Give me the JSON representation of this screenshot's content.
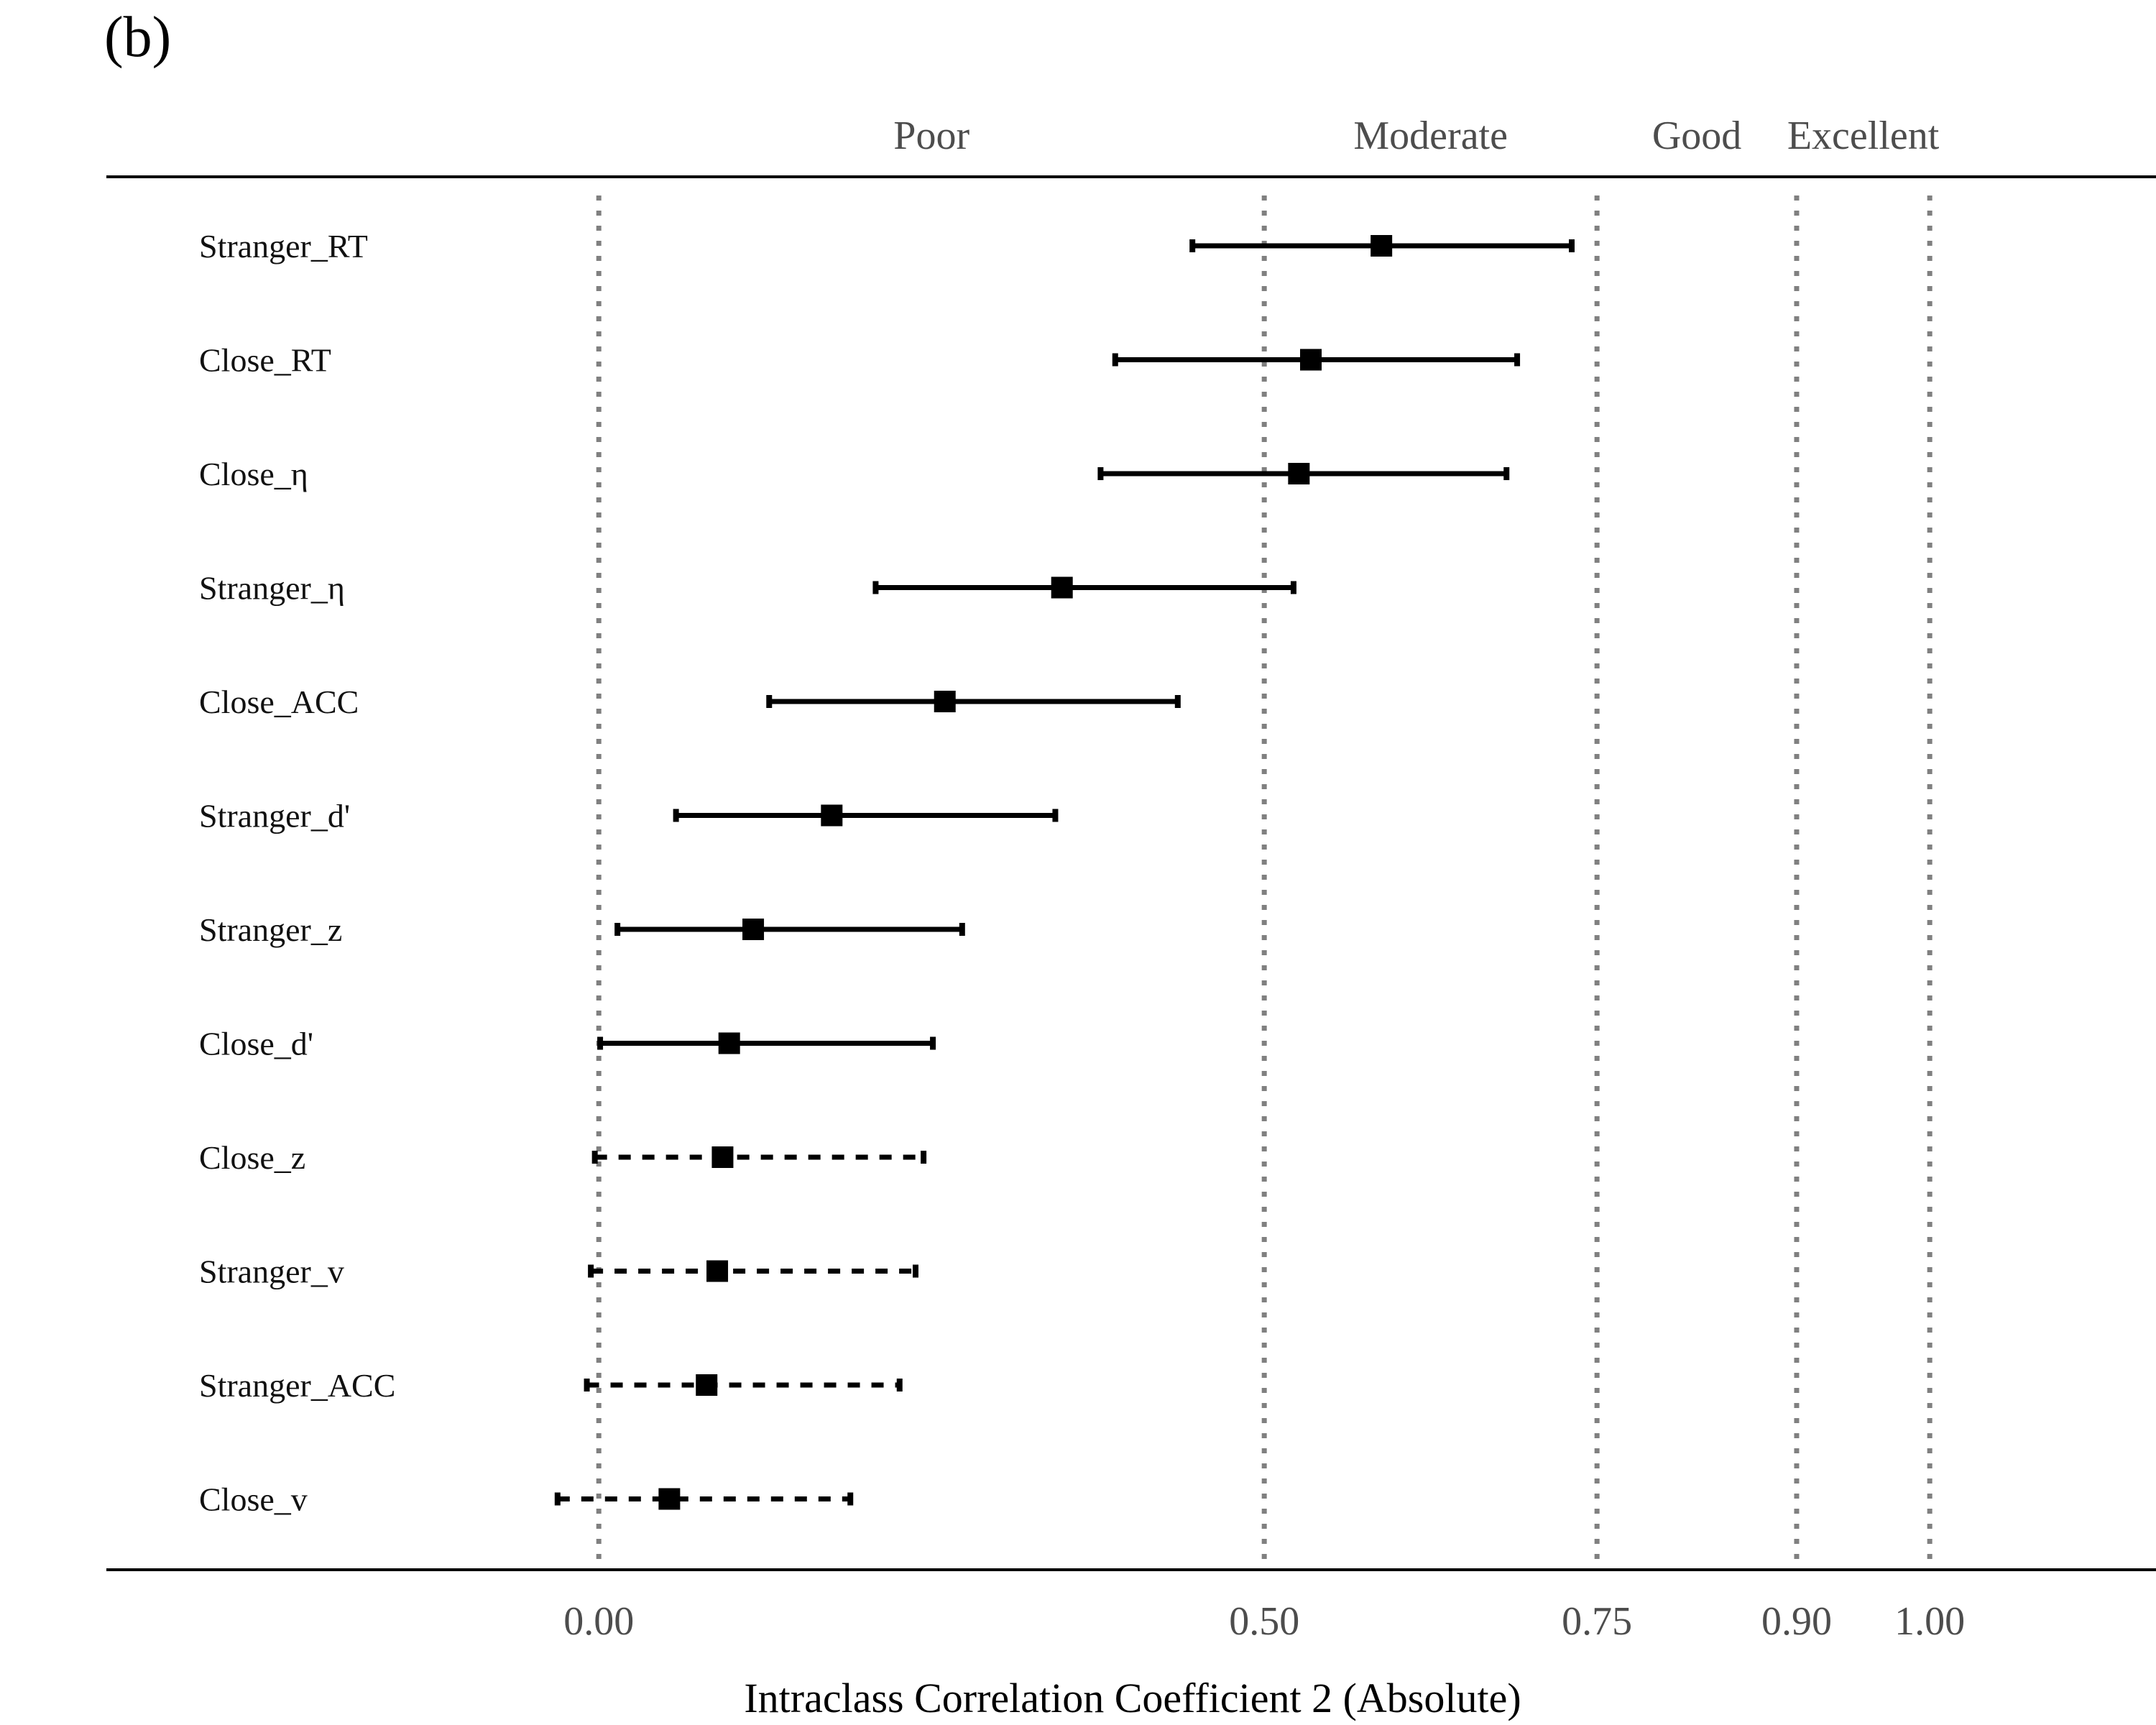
{
  "panel_label": "(b)",
  "colors": {
    "marker": "#000000",
    "ci_line": "#000000",
    "reference_line": "#808080",
    "axis": "#000000",
    "band_text": "#4d4d4d"
  },
  "chart_data": {
    "type": "forest",
    "title": "",
    "xlabel": "Intraclass Correlation Coefficient 2 (Absolute)",
    "ylabel": "",
    "xlim": [
      -0.37,
      1.17
    ],
    "x_ticks": [
      {
        "value": 0.0,
        "label": "0.00"
      },
      {
        "value": 0.5,
        "label": "0.50"
      },
      {
        "value": 0.75,
        "label": "0.75"
      },
      {
        "value": 0.9,
        "label": "0.90"
      },
      {
        "value": 1.0,
        "label": "1.00"
      }
    ],
    "reference_lines": [
      0.0,
      0.5,
      0.75,
      0.9,
      1.0
    ],
    "bands": [
      {
        "label": "Poor",
        "position": 0.25
      },
      {
        "label": "Moderate",
        "position": 0.625
      },
      {
        "label": "Good",
        "position": 0.825
      },
      {
        "label": "Excellent",
        "position": 0.95
      }
    ],
    "line_style_legend": "solid = CI lower bound ≥ 0, dashed = CI crosses 0",
    "rows": [
      {
        "label": "Stranger_RT",
        "estimate": 0.588,
        "lower": 0.446,
        "upper": 0.731,
        "dashed": false
      },
      {
        "label": "Close_RT",
        "estimate": 0.535,
        "lower": 0.388,
        "upper": 0.69,
        "dashed": false
      },
      {
        "label": "Close_η",
        "estimate": 0.526,
        "lower": 0.377,
        "upper": 0.682,
        "dashed": false
      },
      {
        "label": "Stranger_η",
        "estimate": 0.348,
        "lower": 0.208,
        "upper": 0.522,
        "dashed": false
      },
      {
        "label": "Close_ACC",
        "estimate": 0.26,
        "lower": 0.128,
        "upper": 0.435,
        "dashed": false
      },
      {
        "label": "Stranger_d'",
        "estimate": 0.175,
        "lower": 0.058,
        "upper": 0.343,
        "dashed": false
      },
      {
        "label": "Stranger_z",
        "estimate": 0.116,
        "lower": 0.014,
        "upper": 0.273,
        "dashed": false
      },
      {
        "label": "Close_d'",
        "estimate": 0.098,
        "lower": 0.001,
        "upper": 0.251,
        "dashed": false
      },
      {
        "label": "Close_z",
        "estimate": 0.093,
        "lower": -0.003,
        "upper": 0.244,
        "dashed": true
      },
      {
        "label": "Stranger_v",
        "estimate": 0.089,
        "lower": -0.006,
        "upper": 0.238,
        "dashed": true
      },
      {
        "label": "Stranger_ACC",
        "estimate": 0.081,
        "lower": -0.009,
        "upper": 0.226,
        "dashed": true
      },
      {
        "label": "Close_v",
        "estimate": 0.053,
        "lower": -0.031,
        "upper": 0.189,
        "dashed": true
      }
    ]
  }
}
